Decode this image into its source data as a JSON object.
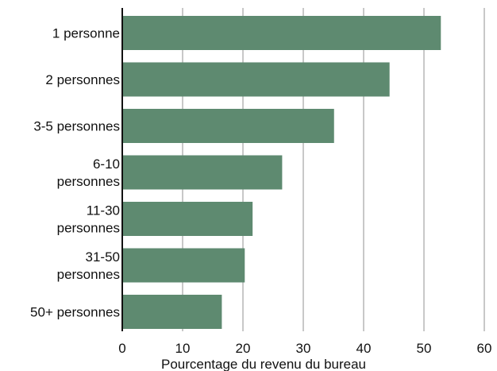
{
  "chart_data": {
    "type": "bar",
    "orientation": "horizontal",
    "title": "",
    "xlabel": "Pourcentage du revenu du bureau",
    "ylabel": "",
    "categories": [
      [
        "1 personne"
      ],
      [
        "2 personnes"
      ],
      [
        "3-5 personnes"
      ],
      [
        "6-10",
        "personnes"
      ],
      [
        "11-30",
        "personnes"
      ],
      [
        "31-50",
        "personnes"
      ],
      [
        "50+ personnes"
      ]
    ],
    "values": [
      52.8,
      44.3,
      35.1,
      26.5,
      21.6,
      20.3,
      16.5
    ],
    "xlim": [
      0,
      60
    ],
    "xticks": [
      0,
      10,
      20,
      30,
      40,
      50,
      60
    ],
    "grid": true,
    "bar_color": "#5e8a70",
    "grid_color": "#c8c8c8",
    "axis_color": "#111111"
  }
}
